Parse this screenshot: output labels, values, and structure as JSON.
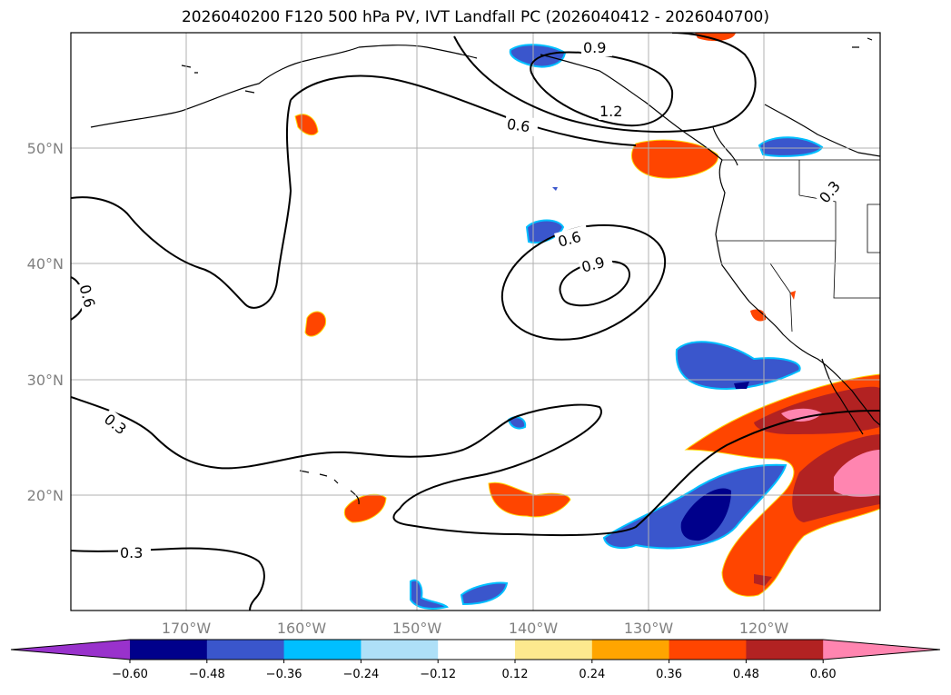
{
  "title": "2026040200 F120 500 hPa PV, IVT Landfall PC (2026040412 - 2026040700)",
  "axes": {
    "lat_ticks": [
      "50°N",
      "40°N",
      "30°N",
      "20°N"
    ],
    "lon_ticks": [
      "170°W",
      "160°W",
      "150°W",
      "140°W",
      "130°W",
      "120°W"
    ]
  },
  "contour_labels": [
    "0.9",
    "1.2",
    "0.6",
    "0.3",
    "0.6",
    "0.9",
    "0.6",
    "0.3",
    "0.3"
  ],
  "colorbar": {
    "tick_labels": [
      "−0.60",
      "−0.48",
      "−0.36",
      "−0.24",
      "−0.12",
      "0.12",
      "0.24",
      "0.36",
      "0.48",
      "0.60"
    ],
    "colors": [
      "#9932cc",
      "#00008b",
      "#3a56cc",
      "#00bfff",
      "#aee0f8",
      "#ffffff",
      "#fde98e",
      "#ffa500",
      "#ff4500",
      "#b22222",
      "#ff85b0"
    ],
    "extend": "both"
  }
}
